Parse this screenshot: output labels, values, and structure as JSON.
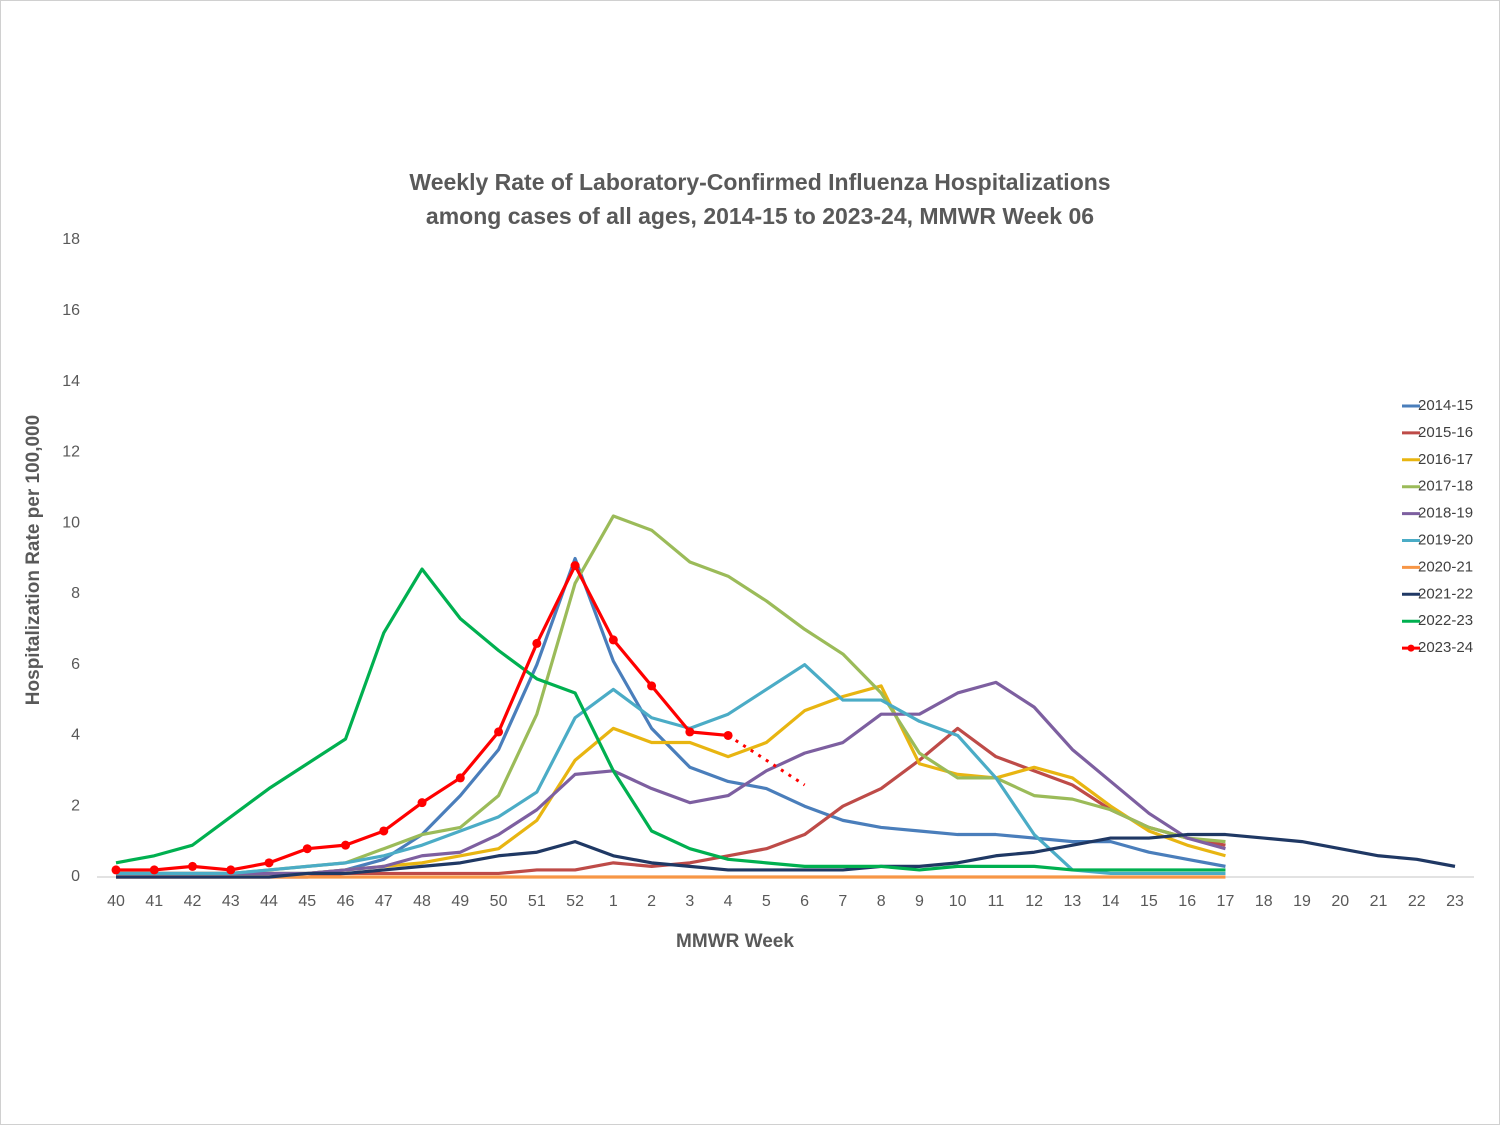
{
  "chart_data": {
    "type": "line",
    "title": [
      "Weekly Rate of Laboratory-Confirmed Influenza Hospitalizations",
      "among cases of all ages, 2014-15 to 2023-24, MMWR Week 06"
    ],
    "x_label": "MMWR Week",
    "y_label": "Hospitalization Rate per 100,000",
    "categories": [
      "40",
      "41",
      "42",
      "43",
      "44",
      "45",
      "46",
      "47",
      "48",
      "49",
      "50",
      "51",
      "52",
      "1",
      "2",
      "3",
      "4",
      "5",
      "6",
      "7",
      "8",
      "9",
      "10",
      "11",
      "12",
      "13",
      "14",
      "15",
      "16",
      "17",
      "18",
      "19",
      "20",
      "21",
      "22",
      "23"
    ],
    "ylim": [
      0,
      18
    ],
    "yticks": [
      0,
      2,
      4,
      6,
      8,
      10,
      12,
      14,
      16,
      18
    ],
    "grid": false,
    "legend": "right",
    "series": [
      {
        "name": "2014-15",
        "color": "#4a7ebb",
        "values": [
          0.1,
          0.1,
          0.1,
          0.1,
          0.1,
          0.1,
          0.2,
          0.5,
          1.2,
          2.3,
          3.6,
          6.0,
          9.0,
          6.1,
          4.2,
          3.1,
          2.7,
          2.5,
          2.0,
          1.6,
          1.4,
          1.3,
          1.2,
          1.2,
          1.1,
          1.0,
          1.0,
          0.7,
          0.5,
          0.3,
          null,
          null,
          null,
          null,
          null,
          null
        ]
      },
      {
        "name": "2015-16",
        "color": "#be4b48",
        "values": [
          0.0,
          0.0,
          0.0,
          0.0,
          0.0,
          0.0,
          0.1,
          0.1,
          0.1,
          0.1,
          0.1,
          0.2,
          0.2,
          0.4,
          0.3,
          0.4,
          0.6,
          0.8,
          1.2,
          2.0,
          2.5,
          3.3,
          4.2,
          3.4,
          3.0,
          2.6,
          1.9,
          1.4,
          1.1,
          0.9,
          null,
          null,
          null,
          null,
          null,
          null
        ]
      },
      {
        "name": "2016-17",
        "color": "#e8b511",
        "values": [
          0.1,
          0.1,
          0.1,
          0.1,
          0.1,
          0.1,
          0.2,
          0.3,
          0.4,
          0.6,
          0.8,
          1.6,
          3.3,
          4.2,
          3.8,
          3.8,
          3.4,
          3.8,
          4.7,
          5.1,
          5.4,
          3.2,
          2.9,
          2.8,
          3.1,
          2.8,
          2.0,
          1.3,
          0.9,
          0.6,
          null,
          null,
          null,
          null,
          null,
          null
        ]
      },
      {
        "name": "2017-18",
        "color": "#9bbb59",
        "values": [
          0.1,
          0.1,
          0.1,
          0.1,
          0.2,
          0.3,
          0.4,
          0.8,
          1.2,
          1.4,
          2.3,
          4.6,
          8.3,
          10.2,
          9.8,
          8.9,
          8.5,
          7.8,
          7.0,
          6.3,
          5.2,
          3.5,
          2.8,
          2.8,
          2.3,
          2.2,
          1.9,
          1.4,
          1.1,
          1.0,
          null,
          null,
          null,
          null,
          null,
          null
        ]
      },
      {
        "name": "2018-19",
        "color": "#7d5fa0",
        "values": [
          0.1,
          0.1,
          0.1,
          0.1,
          0.1,
          0.1,
          0.2,
          0.3,
          0.6,
          0.7,
          1.2,
          1.9,
          2.9,
          3.0,
          2.5,
          2.1,
          2.3,
          3.0,
          3.5,
          3.8,
          4.6,
          4.6,
          5.2,
          5.5,
          4.8,
          3.6,
          2.7,
          1.8,
          1.1,
          0.8,
          null,
          null,
          null,
          null,
          null,
          null
        ]
      },
      {
        "name": "2019-20",
        "color": "#4bacc6",
        "values": [
          0.1,
          0.1,
          0.1,
          0.1,
          0.2,
          0.3,
          0.4,
          0.6,
          0.9,
          1.3,
          1.7,
          2.4,
          4.5,
          5.3,
          4.5,
          4.2,
          4.6,
          5.3,
          6.0,
          5.0,
          5.0,
          4.4,
          4.0,
          2.8,
          1.2,
          0.2,
          0.1,
          0.1,
          0.1,
          0.1,
          null,
          null,
          null,
          null,
          null,
          null
        ]
      },
      {
        "name": "2020-21",
        "color": "#f79646",
        "values": [
          0.0,
          0.0,
          0.0,
          0.0,
          0.0,
          0.0,
          0.0,
          0.0,
          0.0,
          0.0,
          0.0,
          0.0,
          0.0,
          0.0,
          0.0,
          0.0,
          0.0,
          0.0,
          0.0,
          0.0,
          0.0,
          0.0,
          0.0,
          0.0,
          0.0,
          0.0,
          0.0,
          0.0,
          0.0,
          0.0,
          null,
          null,
          null,
          null,
          null,
          null
        ]
      },
      {
        "name": "2021-22",
        "color": "#1f3864",
        "values": [
          0.0,
          0.0,
          0.0,
          0.0,
          0.0,
          0.1,
          0.1,
          0.2,
          0.3,
          0.4,
          0.6,
          0.7,
          1.0,
          0.6,
          0.4,
          0.3,
          0.2,
          0.2,
          0.2,
          0.2,
          0.3,
          0.3,
          0.4,
          0.6,
          0.7,
          0.9,
          1.1,
          1.1,
          1.2,
          1.2,
          1.1,
          1.0,
          0.8,
          0.6,
          0.5,
          0.3
        ]
      },
      {
        "name": "2022-23",
        "color": "#00b050",
        "values": [
          0.4,
          0.6,
          0.9,
          1.7,
          2.5,
          3.2,
          3.9,
          6.9,
          8.7,
          7.3,
          6.4,
          5.6,
          5.2,
          3.0,
          1.3,
          0.8,
          0.5,
          0.4,
          0.3,
          0.3,
          0.3,
          0.2,
          0.3,
          0.3,
          0.3,
          0.2,
          0.2,
          0.2,
          0.2,
          0.2,
          null,
          null,
          null,
          null,
          null,
          null
        ]
      },
      {
        "name": "2023-24",
        "color": "#ff0000",
        "markers": true,
        "values": [
          0.2,
          0.2,
          0.3,
          0.2,
          0.4,
          0.8,
          0.9,
          1.3,
          2.1,
          2.8,
          4.1,
          6.6,
          8.8,
          6.7,
          5.4,
          4.1,
          4.0,
          null,
          null,
          null,
          null,
          null,
          null,
          null,
          null,
          null,
          null,
          null,
          null,
          null,
          null,
          null,
          null,
          null,
          null,
          null
        ]
      },
      {
        "color": "#ff0000",
        "dashed": true,
        "values": [
          null,
          null,
          null,
          null,
          null,
          null,
          null,
          null,
          null,
          null,
          null,
          null,
          null,
          null,
          null,
          null,
          4.0,
          3.3,
          2.6,
          null,
          null,
          null,
          null,
          null,
          null,
          null,
          null,
          null,
          null,
          null,
          null,
          null,
          null,
          null,
          null,
          null
        ]
      }
    ]
  }
}
